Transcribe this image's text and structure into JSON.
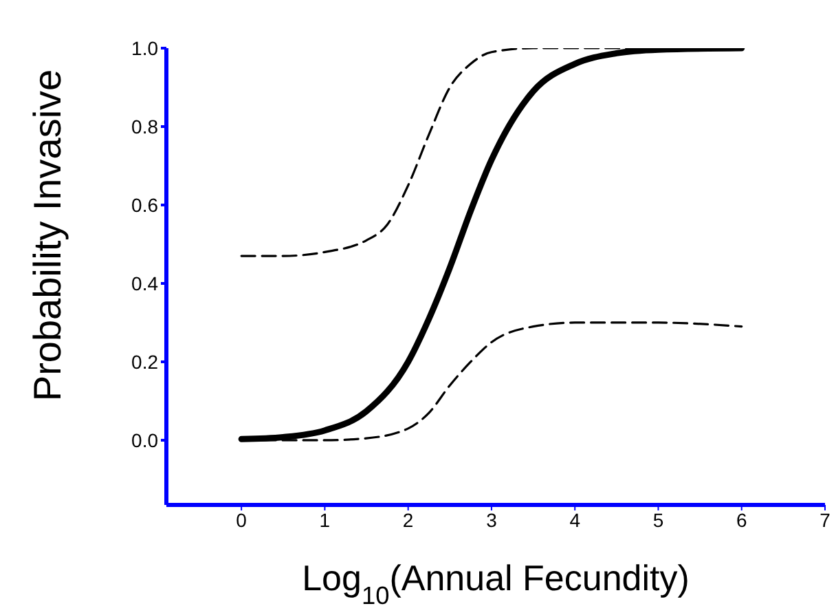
{
  "chart_data": {
    "type": "line",
    "xlabel": "Log$_{10}$(Annual Fecundity)",
    "ylabel": "Probability Invasive",
    "xlim": [
      -0.9,
      7
    ],
    "xticks": [
      0,
      1,
      2,
      3,
      4,
      5,
      6,
      7
    ],
    "ylim": [
      -0.165,
      1.0
    ],
    "yticks": [
      {
        "value": 0,
        "label": "0.0"
      },
      0.2,
      0.4,
      0.6,
      0.8,
      {
        "value": 1,
        "label": "1.0"
      }
    ],
    "grid": false,
    "legend": false,
    "marker": "none",
    "series": [
      {
        "color": "#000000",
        "line_style": "solid",
        "x": [
          0,
          0.5,
          1,
          1.5,
          2,
          2.25,
          2.5,
          2.75,
          3,
          3.5,
          4,
          4.5,
          5,
          6
        ],
        "values": [
          0.003,
          0.008,
          0.025,
          0.074,
          0.2,
          0.31,
          0.44,
          0.585,
          0.715,
          0.89,
          0.96,
          0.987,
          0.996,
          1.0
        ]
      },
      {
        "color": "#000000",
        "line_style": "dashed",
        "x": [
          0,
          0.5,
          1,
          1.5,
          1.75,
          2,
          2.25,
          2.5,
          2.75,
          3,
          3.5,
          4,
          5,
          6
        ],
        "values": [
          0.47,
          0.47,
          0.48,
          0.51,
          0.55,
          0.65,
          0.78,
          0.9,
          0.96,
          0.99,
          1.0,
          1.0,
          1.0,
          1.0
        ]
      },
      {
        "color": "#000000",
        "line_style": "dashed",
        "x": [
          0,
          0.5,
          1,
          1.5,
          2,
          2.25,
          2.5,
          2.75,
          3,
          3.5,
          4,
          4.5,
          5,
          6
        ],
        "values": [
          0,
          0,
          0,
          0.005,
          0.03,
          0.07,
          0.14,
          0.2,
          0.25,
          0.29,
          0.3,
          0.3,
          0.3,
          0.29
        ]
      }
    ]
  }
}
